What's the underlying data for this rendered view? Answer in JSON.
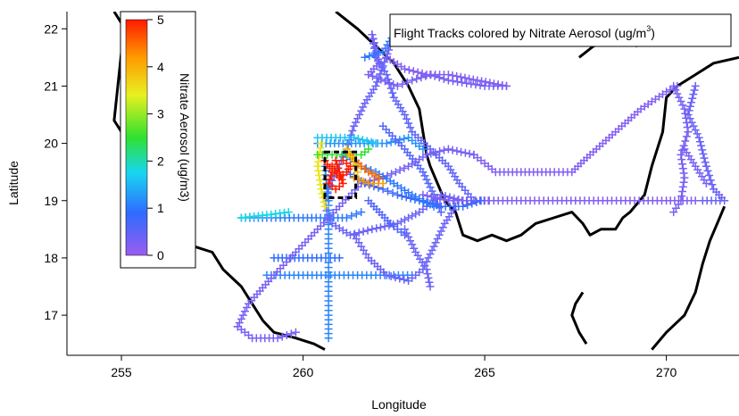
{
  "title": "Flight Tracks colored by Nitrate Aerosol (ug/m",
  "title_superscript": "3",
  "title_close": ")",
  "xlabel": "Longitude",
  "ylabel": "Latitude",
  "colorbar_label": "Nitrate Aerosol (ug/m3)",
  "colorbar_ticks": [
    "0",
    "1",
    "2",
    "3",
    "4",
    "5"
  ],
  "colors": {
    "coast": "#000000",
    "track_low": "#9b5cf0",
    "track_mid": "#2f6bff",
    "track_high": "#ff2a00"
  },
  "chart_data": {
    "type": "scatter",
    "title": "Flight Tracks colored by Nitrate Aerosol (ug/m3)",
    "xlabel": "Longitude",
    "ylabel": "Latitude",
    "xlim": [
      253.5,
      272
    ],
    "ylim": [
      16.3,
      22.3
    ],
    "xticks": [
      255,
      260,
      265,
      270
    ],
    "yticks": [
      17,
      18,
      19,
      20,
      21,
      22
    ],
    "colorbar": {
      "label": "Nitrate Aerosol (ug/m3)",
      "range": [
        0,
        5
      ],
      "colormap": "rainbow"
    },
    "coastlines": [
      [
        [
          254.8,
          22.3
        ],
        [
          255.1,
          22.0
        ],
        [
          255.0,
          21.6
        ],
        [
          254.9,
          21.0
        ],
        [
          254.8,
          20.4
        ],
        [
          255.2,
          20.0
        ],
        [
          255.8,
          19.8
        ],
        [
          255.9,
          19.3
        ],
        [
          255.9,
          19.0
        ]
      ],
      [
        [
          257.0,
          18.2
        ],
        [
          257.5,
          18.1
        ],
        [
          257.8,
          17.8
        ],
        [
          258.3,
          17.5
        ],
        [
          258.6,
          17.2
        ],
        [
          258.9,
          16.9
        ],
        [
          259.2,
          16.7
        ],
        [
          259.8,
          16.6
        ],
        [
          260.3,
          16.5
        ],
        [
          260.6,
          16.4
        ]
      ],
      [
        [
          260.9,
          22.3
        ],
        [
          261.5,
          22.0
        ],
        [
          262.0,
          21.7
        ],
        [
          262.5,
          21.4
        ],
        [
          262.9,
          21.0
        ],
        [
          263.2,
          20.6
        ],
        [
          263.3,
          20.2
        ],
        [
          263.4,
          19.8
        ],
        [
          263.5,
          19.6
        ],
        [
          263.7,
          19.3
        ],
        [
          263.9,
          19.0
        ],
        [
          264.2,
          18.8
        ],
        [
          264.4,
          18.4
        ],
        [
          264.8,
          18.3
        ],
        [
          265.2,
          18.4
        ],
        [
          265.6,
          18.3
        ],
        [
          266.0,
          18.4
        ],
        [
          266.4,
          18.6
        ],
        [
          266.9,
          18.7
        ],
        [
          267.4,
          18.8
        ],
        [
          267.7,
          18.6
        ],
        [
          267.9,
          18.4
        ],
        [
          268.2,
          18.5
        ],
        [
          268.6,
          18.5
        ],
        [
          268.8,
          18.7
        ],
        [
          269.0,
          18.8
        ],
        [
          269.4,
          19.1
        ],
        [
          269.6,
          19.6
        ],
        [
          269.9,
          20.2
        ],
        [
          270.0,
          20.8
        ],
        [
          270.3,
          21.0
        ],
        [
          270.8,
          21.2
        ],
        [
          271.3,
          21.4
        ],
        [
          272.0,
          21.5
        ]
      ],
      [
        [
          267.6,
          21.5
        ],
        [
          268.0,
          21.7
        ],
        [
          268.6,
          21.8
        ],
        [
          269.2,
          21.7
        ]
      ],
      [
        [
          271.6,
          18.9
        ],
        [
          271.4,
          18.6
        ],
        [
          271.2,
          18.3
        ],
        [
          271.0,
          17.9
        ],
        [
          270.8,
          17.4
        ],
        [
          270.5,
          17.0
        ],
        [
          270.0,
          16.7
        ],
        [
          269.6,
          16.4
        ]
      ],
      [
        [
          267.7,
          17.4
        ],
        [
          267.5,
          17.2
        ],
        [
          267.4,
          17.0
        ],
        [
          267.6,
          16.7
        ],
        [
          267.8,
          16.5
        ]
      ]
    ],
    "flight_tracks": [
      {
        "points": [
          [
            261.9,
            21.9
          ],
          [
            262.0,
            21.5
          ],
          [
            262.3,
            21.2
          ],
          [
            262.5,
            20.8
          ],
          [
            262.8,
            20.5
          ],
          [
            263.0,
            20.2
          ],
          [
            263.5,
            19.9
          ],
          [
            264.0,
            19.6
          ],
          [
            264.3,
            19.3
          ],
          [
            264.7,
            19.0
          ]
        ],
        "nitrate": 0.5
      },
      {
        "points": [
          [
            261.9,
            21.9
          ],
          [
            262.1,
            21.4
          ],
          [
            261.8,
            21.2
          ],
          [
            262.6,
            21.0
          ],
          [
            263.0,
            21.1
          ],
          [
            263.5,
            21.2
          ],
          [
            264.0,
            21.1
          ],
          [
            265.0,
            21.0
          ],
          [
            265.6,
            21.0
          ]
        ],
        "nitrate": 0.3
      },
      {
        "points": [
          [
            262.3,
            21.5
          ],
          [
            262.8,
            21.3
          ],
          [
            263.4,
            21.2
          ],
          [
            264.0,
            21.2
          ],
          [
            264.8,
            21.1
          ],
          [
            265.6,
            21.0
          ]
        ],
        "nitrate": 0.2
      },
      {
        "points": [
          [
            261.7,
            21.5
          ],
          [
            262.2,
            21.6
          ],
          [
            262.5,
            21.9
          ]
        ],
        "nitrate": 1.0
      },
      {
        "points": [
          [
            262.4,
            21.7
          ],
          [
            262.0,
            21.0
          ],
          [
            261.7,
            20.7
          ],
          [
            261.4,
            20.3
          ],
          [
            261.2,
            19.9
          ],
          [
            260.9,
            19.5
          ],
          [
            260.7,
            19.2
          ],
          [
            260.6,
            18.9
          ],
          [
            260.8,
            18.6
          ],
          [
            261.3,
            18.4
          ],
          [
            261.9,
            18.5
          ],
          [
            262.6,
            18.6
          ],
          [
            263.2,
            18.8
          ],
          [
            263.8,
            19.1
          ],
          [
            264.4,
            19.0
          ],
          [
            265.1,
            19.0
          ]
        ],
        "nitrate": 0.4
      },
      {
        "points": [
          [
            260.4,
            20.0
          ],
          [
            261.1,
            20.0
          ],
          [
            261.8,
            20.0
          ],
          [
            262.3,
            20.0
          ],
          [
            262.9,
            20.1
          ],
          [
            263.3,
            19.9
          ]
        ],
        "nitrate": 1.2
      },
      {
        "points": [
          [
            262.2,
            20.3
          ],
          [
            262.8,
            19.9
          ],
          [
            263.3,
            19.5
          ],
          [
            263.6,
            19.1
          ],
          [
            263.8,
            18.8
          ]
        ],
        "nitrate": 0.6
      },
      {
        "points": [
          [
            264.7,
            19.8
          ],
          [
            265.3,
            19.5
          ],
          [
            266.0,
            19.5
          ],
          [
            266.8,
            19.5
          ],
          [
            267.4,
            19.5
          ],
          [
            267.9,
            19.8
          ],
          [
            268.6,
            20.2
          ],
          [
            269.3,
            20.6
          ],
          [
            270.0,
            20.9
          ],
          [
            270.3,
            21.0
          ]
        ],
        "nitrate": 0.2
      },
      {
        "points": [
          [
            263.3,
            19.1
          ],
          [
            264.0,
            19.0
          ],
          [
            265.0,
            19.0
          ],
          [
            266.0,
            19.0
          ],
          [
            267.0,
            19.0
          ],
          [
            268.0,
            19.0
          ],
          [
            269.0,
            19.0
          ],
          [
            270.0,
            19.0
          ],
          [
            270.8,
            19.0
          ]
        ],
        "nitrate": 0.2
      },
      {
        "points": [
          [
            270.2,
            21.0
          ],
          [
            270.5,
            20.6
          ],
          [
            270.6,
            20.2
          ],
          [
            270.4,
            19.8
          ],
          [
            270.5,
            19.4
          ],
          [
            270.4,
            19.0
          ],
          [
            270.2,
            18.8
          ]
        ],
        "nitrate": 0.3
      },
      {
        "points": [
          [
            270.8,
            21.0
          ],
          [
            270.6,
            20.5
          ],
          [
            270.9,
            20.1
          ],
          [
            271.1,
            19.6
          ],
          [
            271.3,
            19.2
          ],
          [
            271.6,
            19.0
          ],
          [
            271.0,
            19.0
          ]
        ],
        "nitrate": 0.4
      },
      {
        "points": [
          [
            270.5,
            19.9
          ],
          [
            270.8,
            19.6
          ],
          [
            271.1,
            19.3
          ]
        ],
        "nitrate": 0.3
      },
      {
        "points": [
          [
            258.3,
            18.7
          ],
          [
            259.0,
            18.7
          ],
          [
            260.0,
            18.7
          ],
          [
            260.6,
            18.7
          ],
          [
            261.2,
            18.7
          ],
          [
            261.6,
            18.8
          ]
        ],
        "nitrate": 1.0
      },
      {
        "points": [
          [
            258.3,
            18.7
          ],
          [
            259.0,
            18.75
          ],
          [
            259.6,
            18.8
          ]
        ],
        "nitrate": 1.8
      },
      {
        "points": [
          [
            259.2,
            18.0
          ],
          [
            260.0,
            18.0
          ],
          [
            260.5,
            18.0
          ],
          [
            261.0,
            18.0
          ]
        ],
        "nitrate": 0.9
      },
      {
        "points": [
          [
            259.0,
            17.7
          ],
          [
            260.0,
            17.7
          ],
          [
            261.0,
            17.7
          ],
          [
            262.0,
            17.7
          ],
          [
            263.0,
            17.7
          ]
        ],
        "nitrate": 1.1
      },
      {
        "points": [
          [
            260.6,
            19.6
          ],
          [
            260.7,
            19.0
          ],
          [
            260.7,
            18.5
          ],
          [
            260.7,
            18.0
          ],
          [
            260.7,
            17.5
          ],
          [
            260.7,
            17.0
          ],
          [
            260.7,
            16.6
          ]
        ],
        "nitrate": 1.1
      },
      {
        "points": [
          [
            258.2,
            16.8
          ],
          [
            258.5,
            17.2
          ],
          [
            259.2,
            17.7
          ],
          [
            259.8,
            18.1
          ],
          [
            260.4,
            18.5
          ],
          [
            261.0,
            18.9
          ],
          [
            261.6,
            19.3
          ],
          [
            262.2,
            19.4
          ],
          [
            262.9,
            19.6
          ],
          [
            263.4,
            19.8
          ],
          [
            264.0,
            19.9
          ],
          [
            264.7,
            19.8
          ]
        ],
        "nitrate": 0.3
      },
      {
        "points": [
          [
            258.2,
            16.8
          ],
          [
            258.6,
            16.6
          ],
          [
            259.3,
            16.6
          ],
          [
            259.8,
            16.7
          ]
        ],
        "nitrate": 0.3
      },
      {
        "points": [
          [
            261.4,
            18.4
          ],
          [
            261.8,
            18.0
          ],
          [
            262.3,
            17.7
          ],
          [
            262.9,
            17.6
          ],
          [
            263.3,
            17.8
          ],
          [
            263.6,
            18.2
          ],
          [
            263.9,
            18.6
          ],
          [
            264.2,
            18.9
          ]
        ],
        "nitrate": 0.4
      },
      {
        "points": [
          [
            262.8,
            18.5
          ],
          [
            263.1,
            18.1
          ],
          [
            263.4,
            17.8
          ],
          [
            263.5,
            17.5
          ]
        ],
        "nitrate": 0.4
      },
      {
        "points": [
          [
            261.2,
            19.5
          ],
          [
            261.7,
            19.3
          ],
          [
            262.2,
            19.2
          ],
          [
            262.6,
            19.1
          ],
          [
            263.2,
            19.0
          ],
          [
            263.8,
            18.9
          ],
          [
            264.4,
            18.9
          ],
          [
            264.9,
            19.0
          ]
        ],
        "nitrate": 0.8
      },
      {
        "points": [
          [
            261.1,
            19.8
          ],
          [
            261.6,
            19.6
          ],
          [
            262.0,
            19.5
          ],
          [
            262.5,
            19.3
          ],
          [
            263.0,
            19.1
          ],
          [
            263.6,
            18.9
          ]
        ],
        "nitrate": 1.0
      },
      {
        "points": [
          [
            261.8,
            19.0
          ],
          [
            262.1,
            18.8
          ],
          [
            262.4,
            18.6
          ],
          [
            262.8,
            18.4
          ]
        ],
        "nitrate": 0.6
      },
      {
        "points": [
          [
            260.5,
            20.0
          ],
          [
            260.4,
            19.6
          ],
          [
            260.5,
            19.2
          ],
          [
            260.6,
            18.9
          ]
        ],
        "nitrate": 3.5
      },
      {
        "points": [
          [
            260.4,
            19.8
          ],
          [
            260.8,
            19.8
          ],
          [
            261.2,
            19.8
          ],
          [
            261.6,
            19.8
          ],
          [
            261.8,
            19.9
          ]
        ],
        "nitrate": 2.5
      },
      {
        "points": [
          [
            260.4,
            20.1
          ],
          [
            260.9,
            20.1
          ],
          [
            261.4,
            20.1
          ],
          [
            262.0,
            20.0
          ]
        ],
        "nitrate": 1.6
      },
      {
        "points": [
          [
            260.6,
            19.7
          ],
          [
            260.8,
            19.5
          ],
          [
            260.7,
            19.3
          ],
          [
            260.9,
            19.2
          ],
          [
            261.1,
            19.3
          ],
          [
            261.0,
            19.5
          ],
          [
            260.9,
            19.7
          ]
        ],
        "nitrate": 5.0
      },
      {
        "points": [
          [
            260.8,
            19.6
          ],
          [
            261.0,
            19.4
          ],
          [
            261.2,
            19.5
          ],
          [
            261.3,
            19.6
          ],
          [
            261.1,
            19.7
          ]
        ],
        "nitrate": 5.0
      },
      {
        "points": [
          [
            261.3,
            19.8
          ],
          [
            261.6,
            19.6
          ],
          [
            261.8,
            19.5
          ],
          [
            262.1,
            19.4
          ]
        ],
        "nitrate": 4.5
      },
      {
        "points": [
          [
            261.2,
            19.9
          ],
          [
            261.4,
            19.7
          ],
          [
            261.5,
            19.5
          ]
        ],
        "nitrate": 3.8
      },
      {
        "points": [
          [
            261.4,
            19.4
          ],
          [
            261.8,
            19.3
          ],
          [
            262.2,
            19.3
          ]
        ],
        "nitrate": 4.2
      }
    ],
    "highlight_box": {
      "lon": [
        260.6,
        261.45
      ],
      "lat": [
        19.05,
        19.85
      ]
    }
  }
}
